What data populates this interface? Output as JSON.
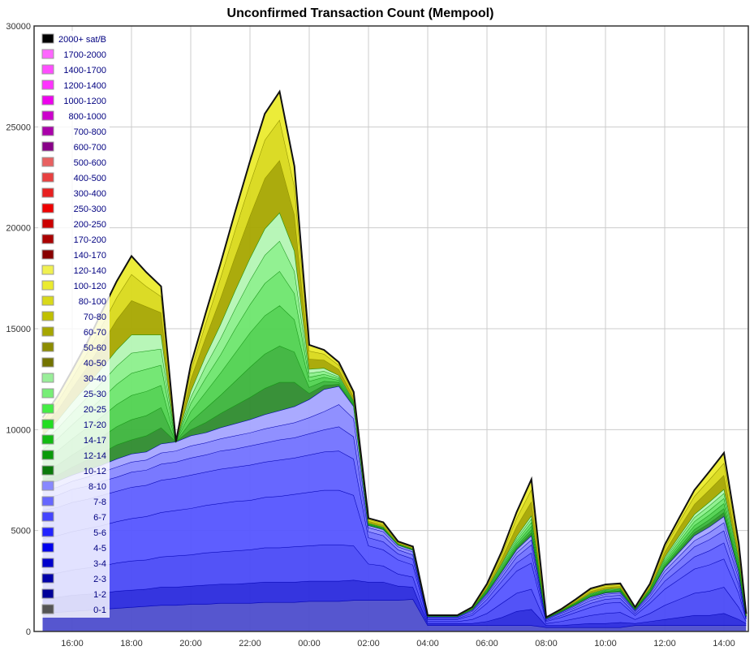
{
  "chart_data": {
    "type": "area",
    "title": "Unconfirmed Transaction Count (Mempool)",
    "stacked": true,
    "ylim": [
      0,
      30000
    ],
    "y_ticks": [
      "0",
      "5000",
      "10000",
      "15000",
      "20000",
      "25000",
      "30000"
    ],
    "x_tick_labels": [
      "16:00",
      "18:00",
      "20:00",
      "22:00",
      "00:00",
      "02:00",
      "04:00",
      "06:00",
      "08:00",
      "10:00",
      "12:00",
      "14:00"
    ],
    "grid": true,
    "legend_position": "top-left",
    "x": [
      "15:00",
      "15:30",
      "16:00",
      "16:30",
      "17:00",
      "17:30",
      "18:00",
      "18:30",
      "19:00",
      "19:30",
      "20:00",
      "20:30",
      "21:00",
      "21:30",
      "22:00",
      "22:30",
      "23:00",
      "23:30",
      "00:00",
      "00:30",
      "01:00",
      "01:30",
      "02:00",
      "02:30",
      "03:00",
      "03:30",
      "04:00",
      "04:30",
      "05:00",
      "05:30",
      "06:00",
      "06:30",
      "07:00",
      "07:30",
      "08:00",
      "08:30",
      "09:00",
      "09:30",
      "10:00",
      "10:30",
      "11:00",
      "11:30",
      "12:00",
      "12:30",
      "13:00",
      "13:30",
      "14:00",
      "14:30",
      "14:45"
    ],
    "groups": [
      {
        "name": "0-1",
        "color": "#4d4dcc",
        "values": [
          900,
          950,
          1000,
          1050,
          1100,
          1150,
          1200,
          1250,
          1300,
          1300,
          1350,
          1350,
          1400,
          1400,
          1400,
          1450,
          1450,
          1450,
          1500,
          1500,
          1500,
          1550,
          1550,
          1550,
          1550,
          1600,
          300,
          300,
          300,
          300,
          300,
          300,
          300,
          300,
          200,
          200,
          200,
          200,
          200,
          200,
          300,
          300,
          300,
          300,
          300,
          300,
          300,
          300,
          300
        ]
      },
      {
        "name": "1-2",
        "color": "#2a2add",
        "values": [
          700,
          750,
          800,
          800,
          800,
          850,
          850,
          850,
          900,
          900,
          900,
          950,
          950,
          950,
          1000,
          1000,
          1000,
          1000,
          1000,
          1000,
          1000,
          1000,
          900,
          900,
          700,
          600,
          100,
          100,
          100,
          100,
          200,
          400,
          700,
          800,
          100,
          100,
          150,
          200,
          200,
          250,
          100,
          200,
          300,
          400,
          500,
          500,
          600,
          300,
          100
        ]
      },
      {
        "name": "2-3",
        "color": "#4a4af7",
        "values": [
          1200,
          1200,
          1250,
          1300,
          1350,
          1400,
          1450,
          1450,
          1500,
          1550,
          1550,
          1600,
          1600,
          1650,
          1650,
          1700,
          1700,
          1750,
          1750,
          1800,
          1800,
          1700,
          900,
          800,
          600,
          500,
          100,
          100,
          100,
          200,
          400,
          700,
          900,
          1000,
          100,
          200,
          300,
          400,
          500,
          500,
          200,
          400,
          700,
          900,
          1100,
          1200,
          1300,
          600,
          100
        ]
      },
      {
        "name": "3-4",
        "color": "#5555ff",
        "values": [
          1800,
          1850,
          1900,
          1950,
          2000,
          2050,
          2100,
          2150,
          2200,
          2250,
          2300,
          2350,
          2400,
          2450,
          2450,
          2500,
          2550,
          2600,
          2650,
          2700,
          2700,
          2500,
          900,
          800,
          700,
          600,
          100,
          100,
          100,
          200,
          500,
          800,
          1100,
          1300,
          100,
          200,
          300,
          400,
          500,
          500,
          200,
          500,
          800,
          1000,
          1200,
          1300,
          1400,
          700,
          100
        ]
      },
      {
        "name": "4-5",
        "color": "#5f5fff",
        "values": [
          1400,
          1400,
          1450,
          1450,
          1500,
          1500,
          1550,
          1550,
          1600,
          1600,
          1650,
          1650,
          1700,
          1700,
          1750,
          1750,
          1800,
          1800,
          1850,
          1900,
          1950,
          1800,
          400,
          400,
          300,
          300,
          50,
          50,
          50,
          100,
          200,
          300,
          400,
          500,
          50,
          100,
          150,
          200,
          200,
          200,
          100,
          200,
          400,
          500,
          600,
          700,
          800,
          400,
          50
        ]
      },
      {
        "name": "5-6",
        "color": "#7272ff",
        "values": [
          600,
          600,
          650,
          650,
          700,
          700,
          750,
          750,
          800,
          800,
          850,
          850,
          900,
          900,
          950,
          950,
          1000,
          1000,
          1050,
          1100,
          1200,
          1100,
          300,
          300,
          200,
          200,
          50,
          50,
          50,
          100,
          150,
          200,
          300,
          400,
          50,
          100,
          100,
          150,
          150,
          150,
          100,
          150,
          300,
          400,
          500,
          550,
          600,
          300,
          50
        ]
      },
      {
        "name": "6-7",
        "color": "#8a8aff",
        "values": [
          400,
          400,
          400,
          450,
          450,
          500,
          500,
          500,
          550,
          550,
          600,
          600,
          600,
          650,
          650,
          700,
          700,
          750,
          800,
          900,
          1100,
          900,
          200,
          200,
          150,
          150,
          30,
          30,
          30,
          50,
          100,
          150,
          200,
          250,
          30,
          50,
          80,
          100,
          100,
          100,
          50,
          100,
          200,
          250,
          300,
          350,
          400,
          200,
          30
        ]
      },
      {
        "name": "7-8",
        "color": "#a5a5ff",
        "values": [
          300,
          300,
          300,
          350,
          350,
          400,
          400,
          400,
          450,
          450,
          500,
          500,
          550,
          600,
          650,
          700,
          750,
          800,
          900,
          1100,
          900,
          600,
          100,
          100,
          80,
          80,
          20,
          20,
          20,
          30,
          60,
          100,
          150,
          200,
          20,
          30,
          50,
          60,
          60,
          60,
          30,
          60,
          150,
          200,
          250,
          280,
          300,
          150,
          20
        ]
      },
      {
        "name": "10-12",
        "color": "#2e8b2e",
        "values": [
          200,
          300,
          400,
          500,
          600,
          700,
          700,
          800,
          800,
          0,
          300,
          500,
          700,
          900,
          1100,
          1300,
          1400,
          1200,
          300,
          200,
          100,
          50,
          20,
          20,
          10,
          10,
          5,
          5,
          5,
          10,
          30,
          60,
          100,
          150,
          5,
          10,
          20,
          30,
          30,
          30,
          10,
          30,
          80,
          120,
          150,
          180,
          200,
          100,
          10
        ]
      },
      {
        "name": "12-14",
        "color": "#3cb43c",
        "values": [
          400,
          500,
          600,
          700,
          800,
          900,
          1000,
          1000,
          1000,
          0,
          400,
          700,
          900,
          1200,
          1500,
          1700,
          1800,
          1500,
          300,
          200,
          100,
          50,
          20,
          20,
          10,
          10,
          5,
          5,
          5,
          10,
          30,
          60,
          100,
          150,
          5,
          10,
          20,
          30,
          30,
          30,
          10,
          30,
          80,
          120,
          150,
          180,
          200,
          100,
          10
        ]
      },
      {
        "name": "14-17",
        "color": "#50d250",
        "values": [
          600,
          700,
          800,
          900,
          1000,
          1100,
          1200,
          1200,
          1100,
          0,
          500,
          800,
          1100,
          1400,
          1700,
          1900,
          2000,
          1600,
          300,
          200,
          100,
          50,
          20,
          20,
          10,
          10,
          5,
          5,
          5,
          10,
          40,
          80,
          120,
          180,
          5,
          10,
          20,
          30,
          30,
          30,
          10,
          40,
          100,
          150,
          200,
          230,
          250,
          120,
          10
        ]
      },
      {
        "name": "17-20",
        "color": "#6ee66e",
        "values": [
          500,
          600,
          700,
          800,
          900,
          1000,
          1100,
          1100,
          1000,
          0,
          400,
          700,
          900,
          1200,
          1400,
          1600,
          1700,
          1300,
          200,
          150,
          80,
          40,
          20,
          20,
          10,
          10,
          5,
          5,
          5,
          10,
          40,
          80,
          120,
          180,
          5,
          10,
          20,
          30,
          30,
          30,
          10,
          40,
          100,
          150,
          200,
          230,
          250,
          120,
          10
        ]
      },
      {
        "name": "20-25",
        "color": "#8cf08c",
        "values": [
          400,
          500,
          600,
          700,
          800,
          900,
          1000,
          900,
          800,
          0,
          300,
          600,
          800,
          1000,
          1200,
          1400,
          1500,
          1100,
          200,
          150,
          80,
          40,
          20,
          20,
          10,
          10,
          5,
          5,
          5,
          10,
          40,
          80,
          120,
          180,
          5,
          10,
          20,
          30,
          30,
          30,
          10,
          40,
          100,
          150,
          200,
          230,
          250,
          120,
          10
        ]
      },
      {
        "name": "25-30",
        "color": "#b4f5b4",
        "values": [
          300,
          400,
          500,
          600,
          700,
          800,
          900,
          800,
          700,
          0,
          300,
          500,
          700,
          900,
          1100,
          1300,
          1400,
          1000,
          200,
          150,
          80,
          40,
          20,
          20,
          10,
          10,
          5,
          5,
          5,
          10,
          30,
          60,
          100,
          150,
          5,
          10,
          20,
          30,
          30,
          30,
          10,
          30,
          80,
          120,
          150,
          180,
          200,
          100,
          10
        ]
      },
      {
        "name": "60-70",
        "color": "#a6a600",
        "values": [
          400,
          500,
          700,
          900,
          1200,
          1500,
          1700,
          1400,
          1100,
          0,
          600,
          900,
          1300,
          1700,
          2100,
          2500,
          2600,
          1800,
          500,
          400,
          300,
          200,
          100,
          100,
          50,
          50,
          10,
          10,
          10,
          30,
          100,
          250,
          500,
          700,
          10,
          30,
          60,
          100,
          100,
          100,
          30,
          100,
          250,
          400,
          500,
          600,
          700,
          300,
          30
        ]
      },
      {
        "name": "80-100",
        "color": "#d9d91a",
        "values": [
          300,
          400,
          500,
          700,
          900,
          1100,
          1300,
          1000,
          800,
          0,
          400,
          700,
          1000,
          1300,
          1600,
          1900,
          2000,
          1400,
          400,
          300,
          200,
          150,
          80,
          80,
          40,
          40,
          10,
          10,
          10,
          20,
          80,
          200,
          400,
          600,
          10,
          20,
          50,
          80,
          80,
          80,
          20,
          80,
          200,
          300,
          400,
          500,
          600,
          250,
          20
        ]
      },
      {
        "name": "100-120",
        "color": "#ebeb2e",
        "values": [
          200,
          300,
          400,
          500,
          700,
          800,
          900,
          700,
          500,
          0,
          300,
          500,
          700,
          900,
          1100,
          1300,
          1400,
          1000,
          300,
          200,
          150,
          100,
          60,
          60,
          30,
          30,
          5,
          5,
          5,
          15,
          60,
          150,
          300,
          500,
          5,
          15,
          40,
          60,
          60,
          60,
          15,
          60,
          150,
          200,
          300,
          400,
          500,
          200,
          15
        ]
      }
    ]
  }
}
